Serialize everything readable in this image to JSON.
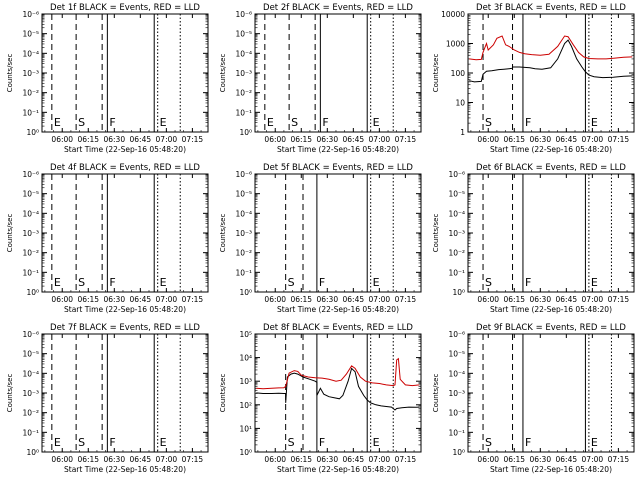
{
  "figure": {
    "x_tick_labels": [
      "06:00",
      "06:15",
      "06:30",
      "06:45",
      "07:00",
      "07:15"
    ],
    "x_axis_label": "Start Time (22-Sep-16 05:48:20)",
    "y_axis_label": "Counts/sec",
    "colors": {
      "events": "#000000",
      "lld": "#cc0000",
      "axes": "#000000",
      "background": "#ffffff"
    }
  },
  "chart_data": [
    {
      "type": "line",
      "title": "Det 1f BLACK = Events, RED = LLD",
      "x_range": [
        "05:48:20",
        "07:24"
      ],
      "ylog": true,
      "y_ticks": [
        "10⁰",
        "10⁻¹",
        "10⁻²",
        "10⁻³",
        "10⁻⁴",
        "10⁻⁵",
        "10⁻⁶"
      ],
      "markers": [
        {
          "time": "05:54",
          "style": "dashed",
          "label": "E"
        },
        {
          "time": "06:08",
          "style": "dashed",
          "label": "S"
        },
        {
          "time": "06:23",
          "style": "dashed",
          "label": ""
        },
        {
          "time": "06:26",
          "style": "solid",
          "label": "F"
        },
        {
          "time": "06:53",
          "style": "solid",
          "label": ""
        },
        {
          "time": "06:55",
          "style": "dotted",
          "label": "E"
        },
        {
          "time": "07:08",
          "style": "dotted",
          "label": ""
        }
      ],
      "series": []
    },
    {
      "type": "line",
      "title": "Det 2f BLACK = Events, RED = LLD",
      "x_range": [
        "05:48:20",
        "07:24"
      ],
      "ylog": true,
      "y_ticks": [
        "10⁰",
        "10⁻¹",
        "10⁻²",
        "10⁻³",
        "10⁻⁴",
        "10⁻⁵",
        "10⁻⁶"
      ],
      "markers": [
        {
          "time": "05:54",
          "style": "dashed",
          "label": "E"
        },
        {
          "time": "06:08",
          "style": "dashed",
          "label": "S"
        },
        {
          "time": "06:23",
          "style": "dashed",
          "label": ""
        },
        {
          "time": "06:26",
          "style": "solid",
          "label": "F"
        },
        {
          "time": "06:53",
          "style": "solid",
          "label": ""
        },
        {
          "time": "06:55",
          "style": "dotted",
          "label": "E"
        },
        {
          "time": "07:08",
          "style": "dotted",
          "label": ""
        }
      ],
      "series": []
    },
    {
      "type": "line",
      "title": "Det 3f BLACK = Events, RED = LLD",
      "x_range": [
        "05:48:20",
        "07:24"
      ],
      "ylog": true,
      "ylim": [
        1,
        10000
      ],
      "y_ticks": [
        "1",
        "10",
        "100",
        "1000",
        "10000"
      ],
      "markers": [
        {
          "time": "05:57",
          "style": "dashed",
          "label": "S"
        },
        {
          "time": "06:14",
          "style": "dashed",
          "label": ""
        },
        {
          "time": "06:20",
          "style": "solid",
          "label": "F"
        },
        {
          "time": "06:56",
          "style": "solid",
          "label": ""
        },
        {
          "time": "06:58",
          "style": "dotted",
          "label": "E"
        },
        {
          "time": "07:11",
          "style": "dotted",
          "label": ""
        }
      ],
      "series": [
        {
          "color": "#000000",
          "points": [
            [
              "05:49",
              55
            ],
            [
              "05:52",
              50
            ],
            [
              "05:56",
              52
            ],
            [
              "05:57",
              90
            ],
            [
              "05:59",
              115
            ],
            [
              "06:02",
              120
            ],
            [
              "06:06",
              130
            ],
            [
              "06:09",
              135
            ],
            [
              "06:12",
              140
            ],
            [
              "06:14",
              145
            ],
            [
              "06:14",
              160
            ],
            [
              "06:18",
              160
            ],
            [
              "06:21",
              155
            ],
            [
              "06:24",
              150
            ],
            [
              "06:27",
              140
            ],
            [
              "06:31",
              135
            ],
            [
              "06:36",
              150
            ],
            [
              "06:40",
              300
            ],
            [
              "06:44",
              1000
            ],
            [
              "06:46",
              1300
            ],
            [
              "06:48",
              800
            ],
            [
              "06:51",
              300
            ],
            [
              "06:54",
              160
            ],
            [
              "06:56",
              110
            ],
            [
              "06:58",
              85
            ],
            [
              "07:01",
              75
            ],
            [
              "07:06",
              70
            ],
            [
              "07:12",
              72
            ],
            [
              "07:18",
              78
            ],
            [
              "07:23",
              80
            ]
          ]
        },
        {
          "color": "#cc0000",
          "points": [
            [
              "05:49",
              300
            ],
            [
              "05:53",
              280
            ],
            [
              "05:56",
              290
            ],
            [
              "05:57",
              500
            ],
            [
              "05:59",
              1000
            ],
            [
              "06:00",
              600
            ],
            [
              "06:03",
              900
            ],
            [
              "06:05",
              1500
            ],
            [
              "06:08",
              1800
            ],
            [
              "06:10",
              900
            ],
            [
              "06:12",
              800
            ],
            [
              "06:15",
              600
            ],
            [
              "06:18",
              500
            ],
            [
              "06:21",
              450
            ],
            [
              "06:25",
              420
            ],
            [
              "06:30",
              400
            ],
            [
              "06:35",
              430
            ],
            [
              "06:40",
              800
            ],
            [
              "06:44",
              1800
            ],
            [
              "06:46",
              1700
            ],
            [
              "06:49",
              900
            ],
            [
              "06:52",
              500
            ],
            [
              "06:55",
              350
            ],
            [
              "06:58",
              310
            ],
            [
              "07:03",
              300
            ],
            [
              "07:08",
              300
            ],
            [
              "07:13",
              320
            ],
            [
              "07:18",
              340
            ],
            [
              "07:23",
              350
            ]
          ]
        }
      ]
    },
    {
      "type": "line",
      "title": "Det 4f BLACK = Events, RED = LLD",
      "x_range": [
        "05:48:20",
        "07:24"
      ],
      "ylog": true,
      "y_ticks": [
        "10⁰",
        "10⁻¹",
        "10⁻²",
        "10⁻³",
        "10⁻⁴",
        "10⁻⁵",
        "10⁻⁶"
      ],
      "markers": [
        {
          "time": "05:54",
          "style": "dashed",
          "label": "E"
        },
        {
          "time": "06:08",
          "style": "dashed",
          "label": "S"
        },
        {
          "time": "06:23",
          "style": "dashed",
          "label": ""
        },
        {
          "time": "06:26",
          "style": "solid",
          "label": "F"
        },
        {
          "time": "06:53",
          "style": "solid",
          "label": ""
        },
        {
          "time": "06:55",
          "style": "dotted",
          "label": "E"
        },
        {
          "time": "07:08",
          "style": "dotted",
          "label": ""
        }
      ],
      "series": []
    },
    {
      "type": "line",
      "title": "Det 5f BLACK = Events, RED = LLD",
      "x_range": [
        "05:48:20",
        "07:24"
      ],
      "ylog": true,
      "y_ticks": [
        "10⁰",
        "10⁻¹",
        "10⁻²",
        "10⁻³",
        "10⁻⁴",
        "10⁻⁵",
        "10⁻⁶"
      ],
      "markers": [
        {
          "time": "06:06",
          "style": "dashed",
          "label": "S"
        },
        {
          "time": "06:16",
          "style": "dashed",
          "label": ""
        },
        {
          "time": "06:24",
          "style": "solid",
          "label": "F"
        },
        {
          "time": "06:53",
          "style": "solid",
          "label": ""
        },
        {
          "time": "06:55",
          "style": "dotted",
          "label": "E"
        },
        {
          "time": "07:08",
          "style": "dotted",
          "label": ""
        }
      ],
      "series": []
    },
    {
      "type": "line",
      "title": "Det 6f BLACK = Events, RED = LLD",
      "x_range": [
        "05:48:20",
        "07:24"
      ],
      "ylog": true,
      "y_ticks": [
        "10⁰",
        "10⁻¹",
        "10⁻²",
        "10⁻³",
        "10⁻⁴",
        "10⁻⁵",
        "10⁻⁶"
      ],
      "markers": [
        {
          "time": "05:57",
          "style": "dashed",
          "label": "S"
        },
        {
          "time": "06:14",
          "style": "dashed",
          "label": ""
        },
        {
          "time": "06:20",
          "style": "solid",
          "label": "F"
        },
        {
          "time": "06:56",
          "style": "solid",
          "label": ""
        },
        {
          "time": "06:58",
          "style": "dotted",
          "label": "E"
        },
        {
          "time": "07:11",
          "style": "dotted",
          "label": ""
        }
      ],
      "series": []
    },
    {
      "type": "line",
      "title": "Det 7f BLACK = Events, RED = LLD",
      "x_range": [
        "05:48:20",
        "07:24"
      ],
      "ylog": true,
      "y_ticks": [
        "10⁰",
        "10⁻¹",
        "10⁻²",
        "10⁻³",
        "10⁻⁴",
        "10⁻⁵",
        "10⁻⁶"
      ],
      "markers": [
        {
          "time": "05:54",
          "style": "dashed",
          "label": "E"
        },
        {
          "time": "06:08",
          "style": "dashed",
          "label": "S"
        },
        {
          "time": "06:23",
          "style": "dashed",
          "label": ""
        },
        {
          "time": "06:26",
          "style": "solid",
          "label": "F"
        },
        {
          "time": "06:53",
          "style": "solid",
          "label": ""
        },
        {
          "time": "06:55",
          "style": "dotted",
          "label": "E"
        },
        {
          "time": "07:08",
          "style": "dotted",
          "label": ""
        }
      ],
      "series": []
    },
    {
      "type": "line",
      "title": "Det 8f BLACK = Events, RED = LLD",
      "x_range": [
        "05:48:20",
        "07:24"
      ],
      "ylog": true,
      "y_ticks": [
        "10⁰",
        "10¹",
        "10²",
        "10³",
        "10⁴",
        "10⁵"
      ],
      "markers": [
        {
          "time": "06:06",
          "style": "dashed",
          "label": "S"
        },
        {
          "time": "06:16",
          "style": "dashed",
          "label": ""
        },
        {
          "time": "06:24",
          "style": "solid",
          "label": "F"
        },
        {
          "time": "06:53",
          "style": "solid",
          "label": ""
        },
        {
          "time": "06:55",
          "style": "dotted",
          "label": "E"
        },
        {
          "time": "07:08",
          "style": "dotted",
          "label": ""
        }
      ],
      "series": [
        {
          "color": "#000000",
          "points": [
            [
              "05:49",
              320
            ],
            [
              "05:53",
              300
            ],
            [
              "05:58",
              300
            ],
            [
              "06:02",
              310
            ],
            [
              "06:05",
              300
            ],
            [
              "06:06",
              300
            ],
            [
              "06:06",
              120
            ],
            [
              "06:07",
              1500
            ],
            [
              "06:09",
              2000
            ],
            [
              "06:11",
              2200
            ],
            [
              "06:13",
              2000
            ],
            [
              "06:16",
              1500
            ],
            [
              "06:20",
              1200
            ],
            [
              "06:23",
              1000
            ],
            [
              "06:24",
              900
            ],
            [
              "06:24",
              250
            ],
            [
              "06:26",
              500
            ],
            [
              "06:28",
              280
            ],
            [
              "06:31",
              220
            ],
            [
              "06:34",
              200
            ],
            [
              "06:37",
              180
            ],
            [
              "06:39",
              250
            ],
            [
              "06:42",
              1000
            ],
            [
              "06:44",
              3500
            ],
            [
              "06:46",
              2500
            ],
            [
              "06:48",
              600
            ],
            [
              "06:51",
              250
            ],
            [
              "06:53",
              160
            ],
            [
              "06:55",
              120
            ],
            [
              "06:58",
              100
            ],
            [
              "07:01",
              90
            ],
            [
              "07:04",
              85
            ],
            [
              "07:07",
              80
            ],
            [
              "07:09",
              60
            ],
            [
              "07:10",
              70
            ],
            [
              "07:13",
              75
            ],
            [
              "07:17",
              80
            ],
            [
              "07:21",
              78
            ],
            [
              "07:23",
              80
            ]
          ]
        },
        {
          "color": "#cc0000",
          "points": [
            [
              "05:49",
              500
            ],
            [
              "05:53",
              480
            ],
            [
              "05:58",
              500
            ],
            [
              "06:02",
              520
            ],
            [
              "06:05",
              530
            ],
            [
              "06:06",
              600
            ],
            [
              "06:08",
              2200
            ],
            [
              "06:11",
              2800
            ],
            [
              "06:13",
              2600
            ],
            [
              "06:15",
              1800
            ],
            [
              "06:19",
              1500
            ],
            [
              "06:23",
              1400
            ],
            [
              "06:27",
              1350
            ],
            [
              "06:31",
              1200
            ],
            [
              "06:35",
              1000
            ],
            [
              "06:38",
              1100
            ],
            [
              "06:41",
              2000
            ],
            [
              "06:44",
              4500
            ],
            [
              "06:46",
              3500
            ],
            [
              "06:49",
              1500
            ],
            [
              "06:52",
              1000
            ],
            [
              "06:56",
              850
            ],
            [
              "07:00",
              800
            ],
            [
              "07:04",
              700
            ],
            [
              "07:08",
              650
            ],
            [
              "07:09",
              700
            ],
            [
              "07:10",
              8000
            ],
            [
              "07:11",
              9000
            ],
            [
              "07:12",
              1200
            ],
            [
              "07:15",
              700
            ],
            [
              "07:19",
              650
            ],
            [
              "07:23",
              700
            ]
          ]
        }
      ]
    },
    {
      "type": "line",
      "title": "Det 9f BLACK = Events, RED = LLD",
      "x_range": [
        "05:48:20",
        "07:24"
      ],
      "ylog": true,
      "y_ticks": [
        "10⁰",
        "10⁻¹",
        "10⁻²",
        "10⁻³",
        "10⁻⁴",
        "10⁻⁵",
        "10⁻⁶"
      ],
      "markers": [
        {
          "time": "05:57",
          "style": "dashed",
          "label": "S"
        },
        {
          "time": "06:14",
          "style": "dashed",
          "label": ""
        },
        {
          "time": "06:20",
          "style": "solid",
          "label": "F"
        },
        {
          "time": "06:56",
          "style": "solid",
          "label": ""
        },
        {
          "time": "06:58",
          "style": "dotted",
          "label": "E"
        },
        {
          "time": "07:11",
          "style": "dotted",
          "label": ""
        }
      ],
      "series": []
    }
  ]
}
